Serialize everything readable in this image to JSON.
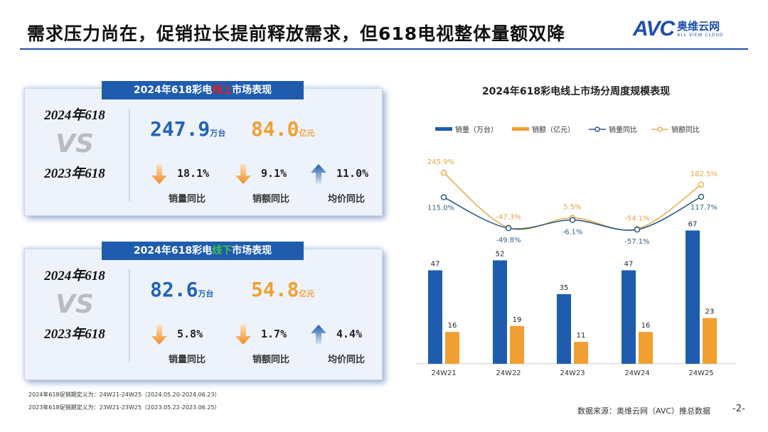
{
  "header": {
    "title": "需求压力尚在，促销拉长提前释放需求，但618电视整体量额双降",
    "logo_text": "AVC",
    "logo_cn": "奥维云网",
    "logo_en": "ALL VIEW CLOUD",
    "accent": "#1d4fa8"
  },
  "online": {
    "title_pre": "2024年618彩电",
    "title_hl": "线上",
    "title_post": "市场表现",
    "year_a": "2024年618",
    "vs": "VS",
    "year_b": "2023年618",
    "volume": "247.9",
    "volume_unit": "万台",
    "amount": "84.0",
    "amount_unit": "亿元",
    "stats": [
      {
        "direction": "down",
        "value": "18.1%",
        "label": "销量同比"
      },
      {
        "direction": "down",
        "value": "9.1%",
        "label": "销额同比"
      },
      {
        "direction": "up",
        "value": "11.0%",
        "label": "均价同比"
      }
    ]
  },
  "offline": {
    "title_pre": "2024年618彩电",
    "title_hl": "线下",
    "title_post": "市场表现",
    "year_a": "2024年618",
    "vs": "VS",
    "year_b": "2023年618",
    "volume": "82.6",
    "volume_unit": "万台",
    "amount": "54.8",
    "amount_unit": "亿元",
    "stats": [
      {
        "direction": "down",
        "value": "5.8%",
        "label": "销量同比"
      },
      {
        "direction": "down",
        "value": "1.7%",
        "label": "销额同比"
      },
      {
        "direction": "up",
        "value": "4.4%",
        "label": "均价同比"
      }
    ]
  },
  "notes": [
    "2024年618促销期定义为：24W21-24W25（2024.05.20-2024.06.23）",
    "2023年618促销期定义为：23W21-23W25（2023.05.22-2023.06.25）"
  ],
  "footer": {
    "source": "数据来源：奥维云网（AVC）推总数据",
    "page": "-2-"
  },
  "watermark": "AVC 奥维云网 ALL VIEW CLOUD",
  "chart_data": {
    "type": "bar",
    "title": "2024年618彩电线上市场分周度规模表现",
    "categories": [
      "24W21",
      "24W22",
      "24W23",
      "24W24",
      "24W25"
    ],
    "series": [
      {
        "name": "销量（万台）",
        "kind": "bar",
        "axis": "left",
        "color": "#1f5cae",
        "values": [
          47,
          52,
          35,
          47,
          67
        ],
        "labels": [
          "47",
          "52",
          "35",
          "47",
          "67"
        ]
      },
      {
        "name": "销额（亿元）",
        "kind": "bar",
        "axis": "left",
        "color": "#f0a030",
        "values": [
          16,
          19,
          11,
          16,
          23
        ],
        "labels": [
          "16",
          "19",
          "11",
          "16",
          "23"
        ]
      },
      {
        "name": "销量同比",
        "kind": "line",
        "axis": "right",
        "color": "#2a5a8a",
        "values": [
          115.0,
          -49.8,
          -6.1,
          -57.1,
          117.7
        ],
        "labels": [
          "115.0%",
          "-49.8%",
          "-6.1%",
          "-57.1%",
          "117.7%"
        ]
      },
      {
        "name": "销额同比",
        "kind": "line",
        "axis": "right",
        "color": "#e8b050",
        "values": [
          245.9,
          -47.3,
          5.5,
          -54.1,
          182.5
        ],
        "labels": [
          "245.9%",
          "-47.3%",
          "5.5%",
          "-54.1%",
          "182.5%"
        ]
      }
    ],
    "legend": "top",
    "grid": false
  }
}
